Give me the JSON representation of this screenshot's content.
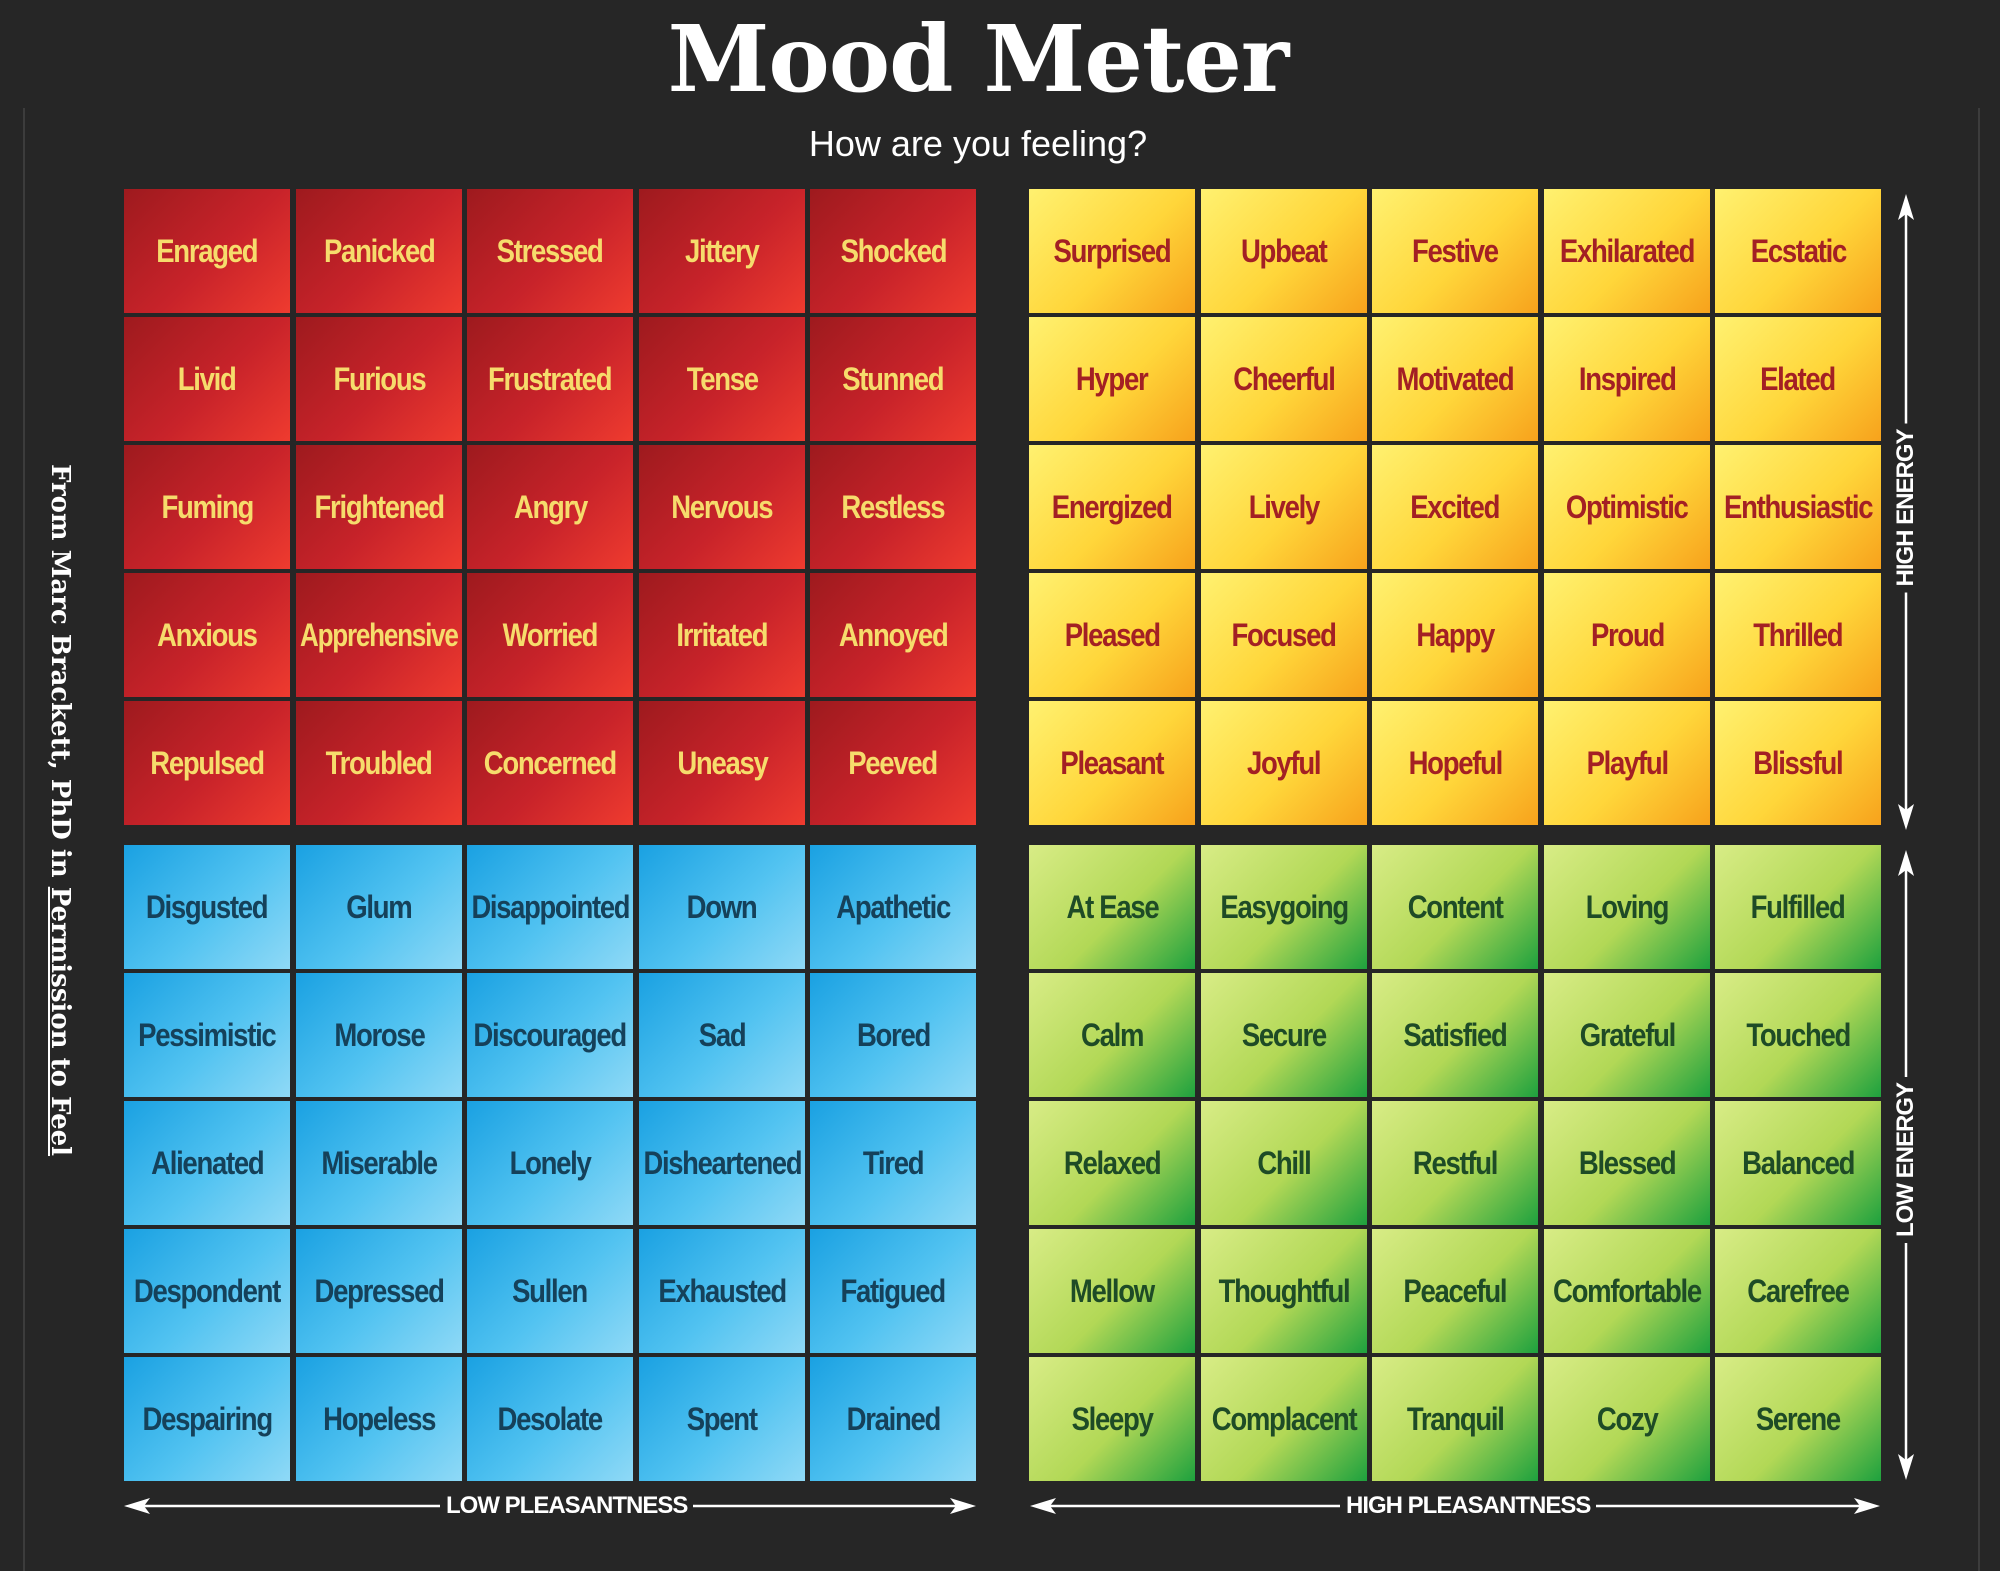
{
  "header": {
    "title": "Mood Meter",
    "subtitle": "How are you feeling?"
  },
  "credit": {
    "prefix": "From Marc Brackett, PhD in ",
    "book": "Permission to Feel"
  },
  "axes": {
    "low_pleasantness": "LOW PLEASANTNESS",
    "high_pleasantness": "HIGH PLEASANTNESS",
    "high_energy": "HIGH ENERGY",
    "low_energy": "LOW ENERGY"
  },
  "colors": {
    "red": "#c8232a",
    "yellow": "#ffd63a",
    "blue": "#52c3f1",
    "green": "#b2d856",
    "background": "#262626"
  },
  "quadrants": {
    "red": [
      [
        "Enraged",
        "Panicked",
        "Stressed",
        "Jittery",
        "Shocked"
      ],
      [
        "Livid",
        "Furious",
        "Frustrated",
        "Tense",
        "Stunned"
      ],
      [
        "Fuming",
        "Frightened",
        "Angry",
        "Nervous",
        "Restless"
      ],
      [
        "Anxious",
        "Apprehensive",
        "Worried",
        "Irritated",
        "Annoyed"
      ],
      [
        "Repulsed",
        "Troubled",
        "Concerned",
        "Uneasy",
        "Peeved"
      ]
    ],
    "yellow": [
      [
        "Surprised",
        "Upbeat",
        "Festive",
        "Exhilarated",
        "Ecstatic"
      ],
      [
        "Hyper",
        "Cheerful",
        "Motivated",
        "Inspired",
        "Elated"
      ],
      [
        "Energized",
        "Lively",
        "Excited",
        "Optimistic",
        "Enthusiastic"
      ],
      [
        "Pleased",
        "Focused",
        "Happy",
        "Proud",
        "Thrilled"
      ],
      [
        "Pleasant",
        "Joyful",
        "Hopeful",
        "Playful",
        "Blissful"
      ]
    ],
    "blue": [
      [
        "Disgusted",
        "Glum",
        "Disappointed",
        "Down",
        "Apathetic"
      ],
      [
        "Pessimistic",
        "Morose",
        "Discouraged",
        "Sad",
        "Bored"
      ],
      [
        "Alienated",
        "Miserable",
        "Lonely",
        "Disheartened",
        "Tired"
      ],
      [
        "Despondent",
        "Depressed",
        "Sullen",
        "Exhausted",
        "Fatigued"
      ],
      [
        "Despairing",
        "Hopeless",
        "Desolate",
        "Spent",
        "Drained"
      ]
    ],
    "green": [
      [
        "At Ease",
        "Easygoing",
        "Content",
        "Loving",
        "Fulfilled"
      ],
      [
        "Calm",
        "Secure",
        "Satisfied",
        "Grateful",
        "Touched"
      ],
      [
        "Relaxed",
        "Chill",
        "Restful",
        "Blessed",
        "Balanced"
      ],
      [
        "Mellow",
        "Thoughtful",
        "Peaceful",
        "Comfortable",
        "Carefree"
      ],
      [
        "Sleepy",
        "Complacent",
        "Tranquil",
        "Cozy",
        "Serene"
      ]
    ]
  }
}
